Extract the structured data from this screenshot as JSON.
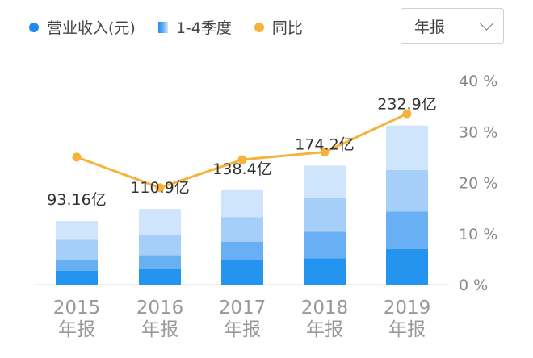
{
  "legend": {
    "revenue": "营业收入(元)",
    "quarters": "1-4季度",
    "yoy": "同比"
  },
  "dropdown": {
    "selected": "年报"
  },
  "colors": {
    "revenue_dot": "#1f8ceb",
    "yoy_line": "#f5b33b",
    "q1": "#2594ee",
    "q2": "#68b0f3",
    "q3": "#a5cff8",
    "q4": "#cfe5fb",
    "axis": "#dddddd"
  },
  "chart_data": {
    "type": "bar",
    "categories": [
      "2015",
      "2016",
      "2017",
      "2018",
      "2019"
    ],
    "category_sublabels": [
      "年报",
      "年报",
      "年报",
      "年报",
      "年报"
    ],
    "series": [
      {
        "name": "营业收入(元)",
        "values": [
          93.16,
          110.9,
          138.4,
          174.2,
          232.9
        ]
      },
      {
        "name": "同比",
        "values": [
          25,
          19,
          24.5,
          26,
          33.5
        ]
      }
    ],
    "quarterly_breakdown": [
      [
        20.5,
        15.5,
        29.5,
        27.66
      ],
      [
        24,
        19,
        30,
        37.9
      ],
      [
        36,
        27,
        36,
        39.4
      ],
      [
        38.5,
        39,
        49,
        47.7
      ],
      [
        52,
        55,
        61,
        64.9
      ]
    ],
    "value_labels": [
      "93.16亿",
      "110.9亿",
      "138.4亿",
      "174.2亿",
      "232.9亿"
    ],
    "y_right": {
      "ticks": [
        "40 %",
        "30 %",
        "20 %",
        "10 %",
        "0 %"
      ],
      "range": [
        0,
        40
      ]
    },
    "legend_position": "top-left"
  }
}
